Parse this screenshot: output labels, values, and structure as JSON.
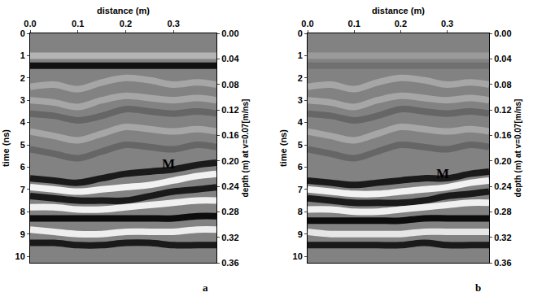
{
  "chart_data": [
    {
      "type": "line",
      "caption": "a",
      "xlabel": "distance (m)",
      "ylabel": "time (ns)",
      "y2label": "depth (m) at v=0.07[m/ns]",
      "xlim": [
        0,
        0.39
      ],
      "xticks": [
        {
          "value": 0,
          "label": "0.0"
        },
        0.1,
        0.2,
        0.3
      ],
      "ylim": [
        10.29,
        0
      ],
      "yticks": [
        0,
        1,
        2,
        3,
        4,
        5,
        6,
        7,
        8,
        9,
        10
      ],
      "y2lim": [
        0.36,
        0
      ],
      "y2ticks": [
        {
          "value": 0,
          "label": "0.00"
        },
        0.04,
        0.08,
        0.12,
        0.16,
        {
          "value": 0.2,
          "label": "0.20"
        },
        0.24,
        0.28,
        0.32,
        0.36
      ],
      "grid": false,
      "annotations": [
        {
          "text": "M",
          "x": 0.29,
          "y": 5.85
        }
      ],
      "x": [
        0,
        0.05,
        0.1,
        0.15,
        0.2,
        0.25,
        0.3,
        0.35,
        0.39
      ],
      "series": [
        {
          "color": "#b4b4b4",
          "values": [
            1.0,
            1.0,
            1.0,
            1.0,
            1.0,
            1.0,
            1.0,
            1.0,
            1.0
          ]
        },
        {
          "color": "#111111",
          "values": [
            1.45,
            1.45,
            1.45,
            1.45,
            1.45,
            1.45,
            1.45,
            1.45,
            1.45
          ]
        },
        {
          "color": "#a6a6a6",
          "values": [
            2.4,
            2.3,
            2.5,
            2.2,
            2.0,
            2.1,
            2.3,
            2.2,
            2.3
          ]
        },
        {
          "color": "#a6a6a6",
          "values": [
            3.0,
            3.1,
            3.3,
            3.0,
            2.8,
            2.9,
            3.0,
            2.9,
            3.0
          ]
        },
        {
          "color": "#666666",
          "values": [
            3.6,
            3.7,
            3.9,
            3.7,
            3.4,
            3.5,
            3.6,
            3.5,
            3.6
          ]
        },
        {
          "color": "#a6a6a6",
          "values": [
            4.4,
            4.6,
            4.8,
            4.5,
            4.2,
            4.3,
            4.4,
            4.3,
            4.4
          ]
        },
        {
          "color": "#666666",
          "values": [
            5.2,
            5.4,
            5.6,
            5.3,
            5.0,
            5.1,
            5.2,
            5.0,
            5.1
          ]
        },
        {
          "color": "#1a1a1a",
          "values": [
            6.5,
            6.6,
            6.7,
            6.5,
            6.3,
            6.2,
            6.1,
            5.9,
            5.8
          ]
        },
        {
          "color": "#f2f2f2",
          "values": [
            6.9,
            7.0,
            7.1,
            7.0,
            6.9,
            6.8,
            6.6,
            6.4,
            6.3
          ]
        },
        {
          "color": "#1a1a1a",
          "values": [
            7.3,
            7.4,
            7.5,
            7.5,
            7.5,
            7.3,
            7.1,
            7.0,
            6.9
          ]
        },
        {
          "color": "#f0f0f0",
          "values": [
            7.8,
            7.8,
            7.9,
            7.9,
            7.8,
            7.7,
            7.6,
            7.5,
            7.5
          ]
        },
        {
          "color": "#0d0d0d",
          "values": [
            8.3,
            8.3,
            8.3,
            8.3,
            8.3,
            8.3,
            8.3,
            8.2,
            8.2
          ]
        },
        {
          "color": "#eeeeee",
          "values": [
            8.8,
            8.9,
            9.0,
            9.0,
            8.9,
            8.9,
            8.9,
            8.8,
            8.8
          ]
        },
        {
          "color": "#1a1a1a",
          "values": [
            9.4,
            9.4,
            9.5,
            9.5,
            9.4,
            9.4,
            9.5,
            9.5,
            9.5
          ]
        }
      ]
    },
    {
      "type": "line",
      "caption": "b",
      "xlabel": "distance (m)",
      "ylabel": "time (ns)",
      "y2label": "depth (m) at v=0.07[m/ns]",
      "xlim": [
        0,
        0.39
      ],
      "xticks": [
        {
          "value": 0,
          "label": "0.0"
        },
        0.1,
        0.2,
        0.3
      ],
      "ylim": [
        10.29,
        0
      ],
      "yticks": [
        0,
        1,
        2,
        3,
        4,
        5,
        6,
        7,
        8,
        9,
        10
      ],
      "y2lim": [
        0.36,
        0
      ],
      "y2ticks": [
        {
          "value": 0,
          "label": "0.00"
        },
        0.04,
        0.08,
        0.12,
        0.16,
        {
          "value": 0.2,
          "label": "0.20"
        },
        0.24,
        0.28,
        0.32,
        0.36
      ],
      "grid": false,
      "annotations": [
        {
          "text": "M",
          "x": 0.29,
          "y": 6.3
        }
      ],
      "x": [
        0,
        0.05,
        0.1,
        0.15,
        0.2,
        0.25,
        0.3,
        0.35,
        0.39
      ],
      "series": [
        {
          "color": "#9a9a9a",
          "values": [
            1.0,
            1.0,
            1.0,
            1.0,
            1.0,
            1.0,
            1.0,
            1.0,
            1.0
          ]
        },
        {
          "color": "#707070",
          "values": [
            1.45,
            1.45,
            1.45,
            1.45,
            1.45,
            1.45,
            1.45,
            1.45,
            1.45
          ]
        },
        {
          "color": "#a6a6a6",
          "values": [
            2.4,
            2.3,
            2.5,
            2.2,
            2.0,
            2.1,
            2.3,
            2.2,
            2.3
          ]
        },
        {
          "color": "#a6a6a6",
          "values": [
            3.0,
            3.1,
            3.3,
            3.0,
            2.8,
            2.9,
            3.0,
            2.9,
            3.0
          ]
        },
        {
          "color": "#666666",
          "values": [
            3.6,
            3.7,
            3.9,
            3.7,
            3.4,
            3.5,
            3.6,
            3.5,
            3.6
          ]
        },
        {
          "color": "#a6a6a6",
          "values": [
            4.4,
            4.6,
            4.8,
            4.5,
            4.2,
            4.3,
            4.4,
            4.3,
            4.4
          ]
        },
        {
          "color": "#666666",
          "values": [
            5.2,
            5.4,
            5.6,
            5.3,
            5.0,
            5.1,
            5.2,
            5.0,
            5.1
          ]
        },
        {
          "color": "#1a1a1a",
          "values": [
            6.6,
            6.7,
            6.8,
            6.7,
            6.6,
            6.5,
            6.5,
            6.3,
            6.2
          ]
        },
        {
          "color": "#f2f2f2",
          "values": [
            7.0,
            7.1,
            7.2,
            7.2,
            7.1,
            7.0,
            6.9,
            6.7,
            6.6
          ]
        },
        {
          "color": "#1a1a1a",
          "values": [
            7.4,
            7.5,
            7.6,
            7.6,
            7.6,
            7.5,
            7.3,
            7.2,
            7.1
          ]
        },
        {
          "color": "#f0f0f0",
          "values": [
            7.9,
            7.9,
            8.0,
            8.0,
            7.9,
            7.8,
            7.7,
            7.6,
            7.6
          ]
        },
        {
          "color": "#0d0d0d",
          "values": [
            8.4,
            8.4,
            8.4,
            8.4,
            8.4,
            8.3,
            8.3,
            8.3,
            8.3
          ]
        },
        {
          "color": "#e6e6e6",
          "values": [
            8.9,
            9.0,
            9.0,
            9.0,
            9.0,
            8.9,
            8.9,
            8.9,
            8.9
          ]
        },
        {
          "color": "#1a1a1a",
          "values": [
            9.5,
            9.5,
            9.5,
            9.5,
            9.5,
            9.4,
            9.5,
            9.5,
            9.5
          ]
        }
      ]
    }
  ]
}
